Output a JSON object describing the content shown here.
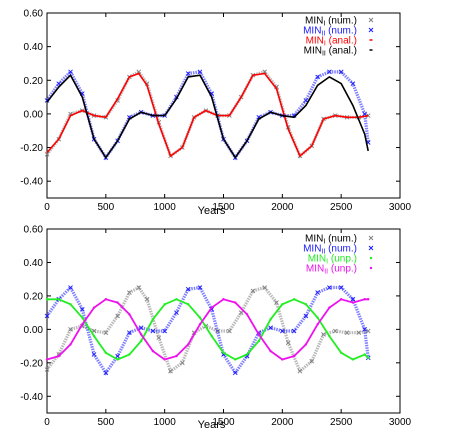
{
  "chart_data": [
    {
      "type": "line",
      "xlabel": "Years",
      "ylabel": "",
      "xlim": [
        0,
        3000
      ],
      "ylim": [
        -0.5,
        0.6
      ],
      "x_ticks": [
        "0",
        "500",
        "1000",
        "1500",
        "2000",
        "2500",
        "3000"
      ],
      "y_ticks": [
        "0.60",
        "0.40",
        "0.20",
        "0.00",
        "-0.20",
        "-0.40"
      ],
      "grid": false,
      "legend_position": "top-right",
      "series": [
        {
          "name": "MIN_I (num.)",
          "label_main": "MIN",
          "label_sub": "I",
          "label_rest": " (num.)",
          "color": "#808080",
          "marker": "x",
          "x": [
            0,
            100,
            200,
            300,
            400,
            500,
            600,
            700,
            780,
            850,
            950,
            1050,
            1150,
            1250,
            1350,
            1450,
            1550,
            1650,
            1750,
            1850,
            1950,
            2050,
            2150,
            2250,
            2350,
            2450,
            2550,
            2650,
            2730
          ],
          "y": [
            -0.24,
            -0.15,
            0.0,
            0.02,
            -0.01,
            -0.02,
            0.08,
            0.22,
            0.25,
            0.18,
            -0.05,
            -0.25,
            -0.2,
            -0.02,
            0.02,
            -0.01,
            -0.01,
            0.1,
            0.23,
            0.25,
            0.16,
            -0.08,
            -0.25,
            -0.19,
            -0.03,
            -0.01,
            -0.02,
            -0.02,
            -0.01
          ]
        },
        {
          "name": "MIN_II (num.)",
          "label_main": "MIN",
          "label_sub": "II",
          "label_rest": " (num.)",
          "color": "#1a1aff",
          "marker": "x",
          "x": [
            0,
            100,
            200,
            300,
            400,
            500,
            600,
            700,
            800,
            900,
            1000,
            1100,
            1200,
            1300,
            1400,
            1500,
            1600,
            1700,
            1800,
            1900,
            2000,
            2100,
            2200,
            2300,
            2400,
            2500,
            2600,
            2700,
            2730
          ],
          "y": [
            0.08,
            0.18,
            0.25,
            0.12,
            -0.15,
            -0.26,
            -0.16,
            -0.02,
            0.01,
            -0.01,
            -0.01,
            0.1,
            0.24,
            0.25,
            0.12,
            -0.15,
            -0.26,
            -0.16,
            -0.02,
            0.01,
            -0.01,
            -0.01,
            0.08,
            0.22,
            0.25,
            0.25,
            0.18,
            0.0,
            -0.17
          ]
        },
        {
          "name": "MIN_I (anal.)",
          "label_main": "MIN",
          "label_sub": "I",
          "label_rest": " (anal.)",
          "color": "#ff0000",
          "marker": "line",
          "x": [
            0,
            100,
            200,
            300,
            400,
            500,
            600,
            700,
            780,
            850,
            950,
            1050,
            1150,
            1250,
            1350,
            1450,
            1550,
            1650,
            1750,
            1850,
            1950,
            2050,
            2150,
            2250,
            2350,
            2450,
            2550,
            2650,
            2730
          ],
          "y": [
            -0.23,
            -0.15,
            -0.01,
            0.02,
            -0.01,
            -0.02,
            0.09,
            0.22,
            0.24,
            0.17,
            -0.06,
            -0.25,
            -0.2,
            -0.02,
            0.02,
            -0.01,
            -0.01,
            0.1,
            0.23,
            0.24,
            0.15,
            -0.09,
            -0.25,
            -0.19,
            -0.03,
            -0.01,
            -0.02,
            -0.02,
            -0.01
          ]
        },
        {
          "name": "MIN_II (anal.)",
          "label_main": "MIN",
          "label_sub": "II",
          "label_rest": " (anal.)",
          "color": "#000000",
          "marker": "line",
          "x": [
            0,
            100,
            200,
            300,
            400,
            500,
            600,
            700,
            800,
            900,
            1000,
            1100,
            1200,
            1300,
            1400,
            1500,
            1600,
            1700,
            1800,
            1900,
            2000,
            2100,
            2200,
            2300,
            2400,
            2500,
            2600,
            2700,
            2730
          ],
          "y": [
            0.07,
            0.16,
            0.23,
            0.1,
            -0.15,
            -0.26,
            -0.16,
            -0.03,
            0.01,
            -0.01,
            -0.01,
            0.09,
            0.22,
            0.23,
            0.1,
            -0.15,
            -0.26,
            -0.16,
            -0.03,
            0.01,
            -0.01,
            -0.02,
            0.05,
            0.17,
            0.22,
            0.18,
            0.05,
            -0.12,
            -0.22
          ]
        }
      ]
    },
    {
      "type": "scatter",
      "xlabel": "Years",
      "ylabel": "",
      "xlim": [
        0,
        3000
      ],
      "ylim": [
        -0.5,
        0.6
      ],
      "x_ticks": [
        "0",
        "500",
        "1000",
        "1500",
        "2000",
        "2500",
        "3000"
      ],
      "y_ticks": [
        "0.60",
        "0.40",
        "0.20",
        "0.00",
        "-0.20",
        "-0.40"
      ],
      "grid": false,
      "legend_position": "top-right",
      "series": [
        {
          "name": "MIN_I (num.)",
          "label_main": "MIN",
          "label_sub": "I",
          "label_rest": " (num.)",
          "color": "#808080",
          "marker": "x",
          "x": [
            0,
            100,
            200,
            300,
            400,
            500,
            600,
            700,
            780,
            850,
            950,
            1050,
            1150,
            1250,
            1350,
            1450,
            1550,
            1650,
            1750,
            1850,
            1950,
            2050,
            2150,
            2250,
            2350,
            2450,
            2550,
            2650,
            2730
          ],
          "y": [
            -0.24,
            -0.15,
            0.0,
            0.02,
            -0.01,
            -0.02,
            0.08,
            0.22,
            0.25,
            0.18,
            -0.05,
            -0.25,
            -0.2,
            -0.02,
            0.02,
            -0.01,
            -0.01,
            0.1,
            0.23,
            0.25,
            0.16,
            -0.08,
            -0.25,
            -0.19,
            -0.03,
            -0.01,
            -0.02,
            -0.02,
            -0.01
          ]
        },
        {
          "name": "MIN_II (num.)",
          "label_main": "MIN",
          "label_sub": "II",
          "label_rest": " (num.)",
          "color": "#1a1aff",
          "marker": "x",
          "x": [
            0,
            100,
            200,
            300,
            400,
            500,
            600,
            700,
            800,
            900,
            1000,
            1100,
            1200,
            1300,
            1400,
            1500,
            1600,
            1700,
            1800,
            1900,
            2000,
            2100,
            2200,
            2300,
            2400,
            2500,
            2600,
            2700,
            2730
          ],
          "y": [
            0.08,
            0.18,
            0.25,
            0.12,
            -0.15,
            -0.26,
            -0.16,
            -0.02,
            0.01,
            -0.01,
            -0.01,
            0.1,
            0.24,
            0.25,
            0.12,
            -0.15,
            -0.26,
            -0.16,
            -0.02,
            0.01,
            -0.01,
            -0.01,
            0.08,
            0.22,
            0.25,
            0.25,
            0.18,
            0.0,
            -0.17
          ]
        },
        {
          "name": "MIN_I (unp.)",
          "label_main": "MIN",
          "label_sub": "I",
          "label_rest": " (unp.)",
          "color": "#22ee22",
          "marker": "dot",
          "x": [
            0,
            100,
            200,
            300,
            400,
            500,
            600,
            700,
            800,
            900,
            1000,
            1100,
            1200,
            1300,
            1400,
            1500,
            1600,
            1700,
            1800,
            1900,
            2000,
            2100,
            2200,
            2300,
            2400,
            2500,
            2600,
            2700,
            2730
          ],
          "y": [
            0.18,
            0.18,
            0.15,
            0.07,
            -0.04,
            -0.14,
            -0.18,
            -0.15,
            -0.07,
            0.06,
            0.15,
            0.18,
            0.15,
            0.07,
            -0.04,
            -0.14,
            -0.18,
            -0.15,
            -0.07,
            0.06,
            0.15,
            0.18,
            0.15,
            0.07,
            -0.04,
            -0.14,
            -0.18,
            -0.15,
            -0.17
          ]
        },
        {
          "name": "MIN_II (unp.)",
          "label_main": "MIN",
          "label_sub": "II",
          "label_rest": " (unp.)",
          "color": "#ee11ee",
          "marker": "dot",
          "x": [
            0,
            100,
            200,
            300,
            400,
            500,
            600,
            700,
            800,
            900,
            1000,
            1100,
            1200,
            1300,
            1400,
            1500,
            1600,
            1700,
            1800,
            1900,
            2000,
            2100,
            2200,
            2300,
            2400,
            2500,
            2600,
            2700,
            2730
          ],
          "y": [
            -0.18,
            -0.16,
            -0.09,
            0.03,
            0.13,
            0.18,
            0.16,
            0.09,
            -0.03,
            -0.13,
            -0.18,
            -0.16,
            -0.09,
            0.03,
            0.13,
            0.18,
            0.16,
            0.09,
            -0.03,
            -0.13,
            -0.18,
            -0.16,
            -0.09,
            0.03,
            0.13,
            0.18,
            0.16,
            0.18,
            0.18
          ]
        }
      ]
    }
  ]
}
